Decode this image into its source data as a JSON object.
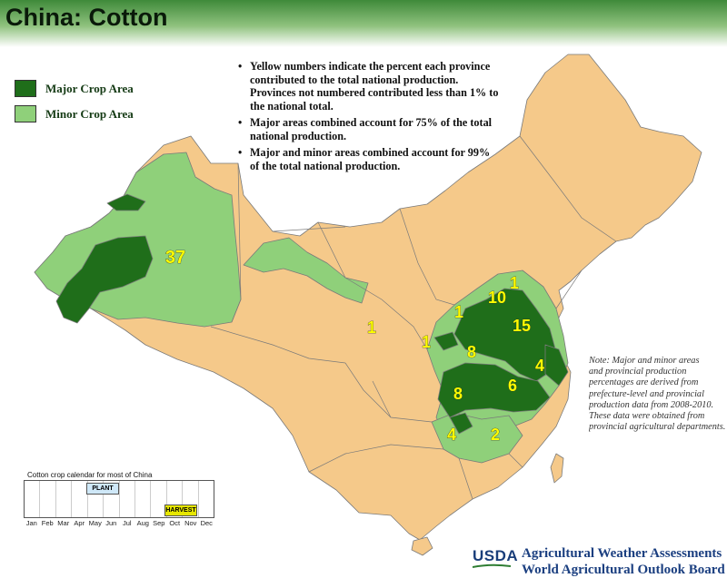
{
  "title": "China: Cotton",
  "legend": [
    {
      "label": "Major Crop Area",
      "color": "#1f6e1a"
    },
    {
      "label": "Minor Crop Area",
      "color": "#8fd07a"
    }
  ],
  "other_color": "#f5c98a",
  "notes": [
    "Yellow numbers indicate the percent each province contributed to the total national production.  Provinces not numbered contributed less than 1% to the national total.",
    "Major areas combined account for 75% of the total national production.",
    "Major and minor areas combined account for 99% of the total national production."
  ],
  "province_percentages": [
    {
      "value": "37",
      "province": "Xinjiang"
    },
    {
      "value": "1",
      "province": "Gansu"
    },
    {
      "value": "1",
      "province": "Shaanxi"
    },
    {
      "value": "1",
      "province": "Shanxi"
    },
    {
      "value": "1",
      "province": "Tianjin"
    },
    {
      "value": "10",
      "province": "Hebei"
    },
    {
      "value": "15",
      "province": "Shandong"
    },
    {
      "value": "8",
      "province": "Henan"
    },
    {
      "value": "4",
      "province": "Jiangsu"
    },
    {
      "value": "8",
      "province": "Hubei"
    },
    {
      "value": "6",
      "province": "Anhui"
    },
    {
      "value": "4",
      "province": "Hunan"
    },
    {
      "value": "2",
      "province": "Jiangxi"
    }
  ],
  "footnote": [
    "Note:  Major and minor areas",
    "and provincial production",
    "percentages are derived from",
    "prefecture-level and provincial",
    "production data from 2008-2010.",
    "These data were obtained from",
    "provincial agricultural departments."
  ],
  "calendar": {
    "title": "Cotton crop calendar for most of China",
    "months": [
      "Jan",
      "Feb",
      "Mar",
      "Apr",
      "May",
      "Jun",
      "Jul",
      "Aug",
      "Sep",
      "Oct",
      "Nov",
      "Dec"
    ],
    "plant": {
      "label": "PLANT",
      "months": [
        "May",
        "Jun"
      ],
      "color": "#cfe8f8"
    },
    "harvest": {
      "label": "HARVEST",
      "months": [
        "Oct",
        "Nov"
      ],
      "color": "#e6e600"
    }
  },
  "footer": {
    "usda": "USDA",
    "line1": "Agricultural Weather Assessments",
    "line2": "World Agricultural Outlook Board"
  }
}
